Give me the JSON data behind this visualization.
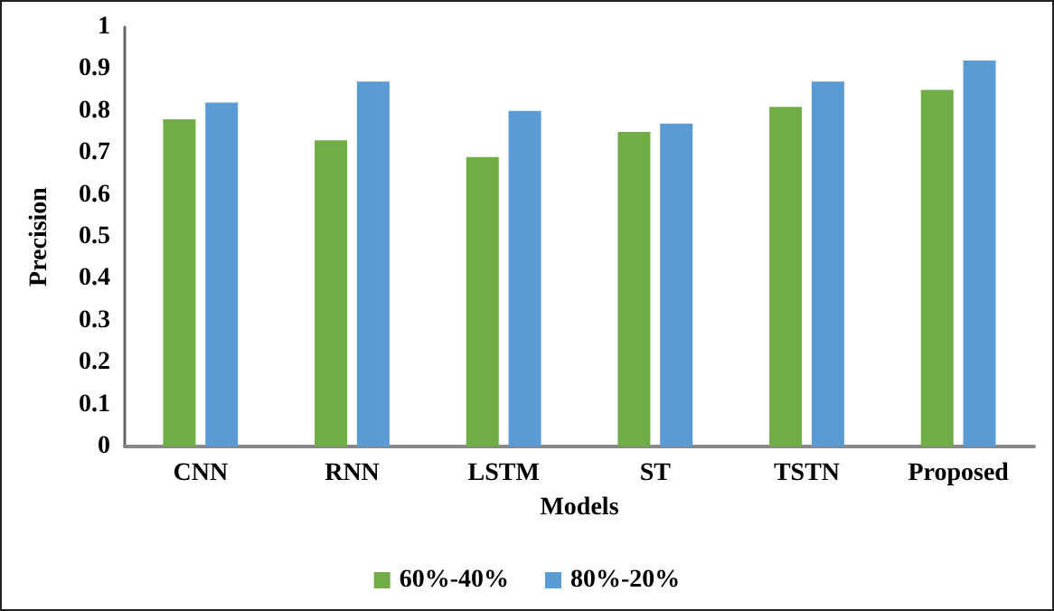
{
  "chart_data": {
    "type": "bar",
    "xlabel": "Models",
    "ylabel": "Precision",
    "categories": [
      "CNN",
      "RNN",
      "LSTM",
      "ST",
      "TSTN",
      "Proposed"
    ],
    "series": [
      {
        "name": "60%-40%",
        "color": "#70ad47",
        "values": [
          0.78,
          0.73,
          0.69,
          0.75,
          0.81,
          0.85
        ]
      },
      {
        "name": "80%-20%",
        "color": "#5b9bd5",
        "values": [
          0.82,
          0.87,
          0.8,
          0.77,
          0.87,
          0.92
        ]
      }
    ],
    "ylim": [
      0,
      1
    ],
    "yticks": [
      0,
      0.1,
      0.2,
      0.3,
      0.4,
      0.5,
      0.6,
      0.7,
      0.8,
      0.9,
      1
    ],
    "grid": false,
    "legend": "bottom"
  }
}
